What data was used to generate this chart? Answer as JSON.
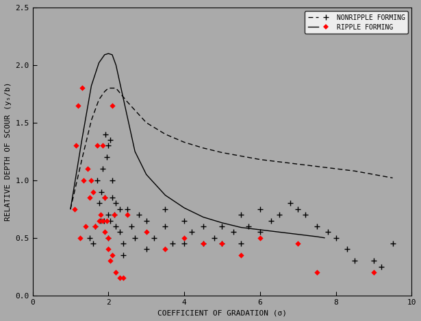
{
  "xlabel": "COEFFICIENT OF GRADATION (σ)",
  "ylabel": "RELATIVE DEPTH OF SCOUR (yₛ/b)",
  "xlim": [
    0,
    10
  ],
  "ylim": [
    0.0,
    2.5
  ],
  "xticks": [
    0,
    2,
    4,
    6,
    8,
    10
  ],
  "yticks": [
    0.0,
    0.5,
    1.0,
    1.5,
    2.0,
    2.5
  ],
  "background_color": "#aaaaaa",
  "ripple_curve_x": [
    1.0,
    1.3,
    1.55,
    1.75,
    1.9,
    2.0,
    2.1,
    2.2,
    2.4,
    2.7,
    3.0,
    3.5,
    4.0,
    4.5,
    5.0,
    5.5,
    6.0,
    6.5,
    7.0,
    7.5,
    7.7
  ],
  "ripple_curve_y": [
    0.75,
    1.35,
    1.82,
    2.02,
    2.09,
    2.1,
    2.09,
    2.0,
    1.7,
    1.25,
    1.05,
    0.87,
    0.76,
    0.68,
    0.63,
    0.59,
    0.57,
    0.55,
    0.53,
    0.51,
    0.5
  ],
  "nonripple_curve_x": [
    1.0,
    1.3,
    1.55,
    1.75,
    1.9,
    2.0,
    2.2,
    2.5,
    3.0,
    3.5,
    4.0,
    4.5,
    5.0,
    5.5,
    6.0,
    6.5,
    7.0,
    7.5,
    8.0,
    8.5,
    9.0,
    9.5
  ],
  "nonripple_curve_y": [
    0.75,
    1.18,
    1.52,
    1.7,
    1.77,
    1.8,
    1.8,
    1.68,
    1.5,
    1.4,
    1.33,
    1.28,
    1.24,
    1.21,
    1.18,
    1.16,
    1.14,
    1.12,
    1.1,
    1.08,
    1.05,
    1.02
  ],
  "ripple_points_x": [
    1.1,
    1.15,
    1.2,
    1.25,
    1.3,
    1.35,
    1.4,
    1.45,
    1.5,
    1.55,
    1.6,
    1.65,
    1.7,
    1.75,
    1.8,
    1.85,
    1.85,
    1.9,
    1.9,
    1.95,
    2.0,
    2.0,
    2.05,
    2.1,
    2.1,
    2.15,
    2.2,
    2.3,
    2.4,
    2.5,
    3.0,
    3.5,
    4.0,
    4.5,
    5.0,
    5.5,
    6.0,
    7.0,
    7.5,
    9.0
  ],
  "ripple_points_y": [
    0.75,
    1.3,
    1.65,
    0.5,
    1.8,
    1.0,
    0.6,
    1.1,
    0.85,
    1.0,
    0.9,
    0.6,
    1.3,
    0.65,
    0.7,
    0.65,
    1.3,
    0.85,
    0.55,
    0.65,
    0.5,
    0.4,
    0.3,
    0.35,
    1.65,
    0.7,
    0.2,
    0.15,
    0.15,
    0.7,
    0.55,
    0.4,
    0.5,
    0.45,
    0.45,
    0.35,
    0.5,
    0.45,
    0.2,
    0.2
  ],
  "nonripple_points_x": [
    1.5,
    1.6,
    1.65,
    1.7,
    1.75,
    1.8,
    1.82,
    1.85,
    1.88,
    1.9,
    1.92,
    1.95,
    2.0,
    2.0,
    2.0,
    2.05,
    2.05,
    2.1,
    2.1,
    2.15,
    2.2,
    2.2,
    2.3,
    2.3,
    2.4,
    2.4,
    2.5,
    2.6,
    2.7,
    2.8,
    3.0,
    3.0,
    3.2,
    3.5,
    3.5,
    3.7,
    4.0,
    4.0,
    4.2,
    4.5,
    4.5,
    4.8,
    5.0,
    5.0,
    5.3,
    5.5,
    5.5,
    5.7,
    6.0,
    6.0,
    6.3,
    6.5,
    6.8,
    7.0,
    7.2,
    7.5,
    7.8,
    8.0,
    8.3,
    8.5,
    9.0,
    9.2,
    9.5
  ],
  "nonripple_points_y": [
    0.5,
    0.45,
    0.6,
    1.0,
    0.8,
    0.65,
    0.9,
    1.1,
    0.65,
    0.85,
    1.4,
    1.2,
    1.3,
    0.7,
    0.5,
    0.65,
    1.35,
    1.0,
    0.85,
    0.7,
    0.8,
    0.6,
    0.75,
    0.55,
    0.45,
    0.35,
    0.75,
    0.6,
    0.5,
    0.7,
    0.65,
    0.4,
    0.5,
    0.75,
    0.6,
    0.45,
    0.65,
    0.45,
    0.55,
    0.6,
    0.45,
    0.5,
    0.6,
    0.45,
    0.55,
    0.7,
    0.45,
    0.6,
    0.75,
    0.55,
    0.65,
    0.7,
    0.8,
    0.75,
    0.7,
    0.6,
    0.55,
    0.5,
    0.4,
    0.3,
    0.3,
    0.25,
    0.45
  ],
  "legend_label_nonripple": "NONRIPPLE FORMING",
  "legend_label_ripple": "RIPPLE FORMING",
  "fontsize_labels": 8,
  "fontsize_ticks": 8,
  "fontsize_legend": 7
}
